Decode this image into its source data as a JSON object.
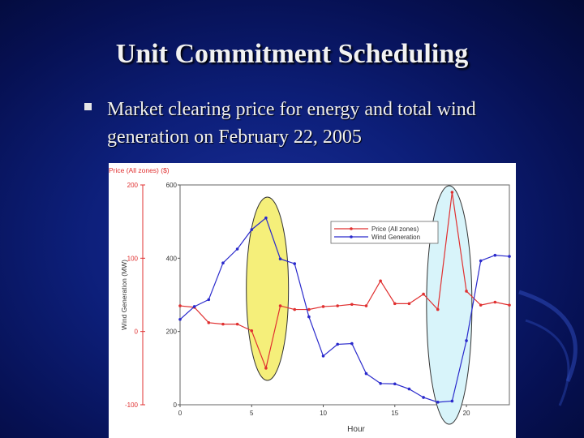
{
  "slide": {
    "title": "Unit Commitment Scheduling",
    "bullet": "Market clearing price for energy and total wind generation on February 22, 2005"
  },
  "colors": {
    "background": "#0d1f7a",
    "price_series": "#e03030",
    "wind_series": "#2a2acc",
    "highlight_yellow": "#f5ef7a",
    "highlight_cyan": "#d8f4fa"
  },
  "chart_data": {
    "type": "line",
    "ylabel_left": "Price (All zones) ($)",
    "ylabel_wind": "Wind Generation (MW)",
    "xlabel": "Hour",
    "xticks": [
      0,
      5,
      10,
      15,
      20
    ],
    "xlim": [
      0,
      23
    ],
    "price_axis": {
      "ticks": [
        200,
        100,
        0,
        -100
      ],
      "ylim": [
        -100,
        200
      ]
    },
    "wind_axis": {
      "ticks": [
        600,
        400,
        200,
        0
      ],
      "ylim": [
        0,
        600
      ]
    },
    "legend": {
      "position": "top-right",
      "entries": [
        "Price (All zones)",
        "Wind Generation"
      ]
    },
    "series": [
      {
        "name": "Price (All zones)",
        "axis": "price",
        "x": [
          0,
          1,
          2,
          3,
          4,
          5,
          6,
          7,
          8,
          9,
          10,
          11,
          12,
          13,
          14,
          15,
          16,
          17,
          18,
          19,
          20,
          21,
          22,
          23
        ],
        "values": [
          35,
          33,
          12,
          10,
          10,
          1,
          -50,
          35,
          30,
          30,
          34,
          35,
          37,
          35,
          69,
          38,
          38,
          51,
          30,
          190,
          55,
          36,
          40,
          36
        ]
      },
      {
        "name": "Wind Generation",
        "axis": "wind",
        "x": [
          0,
          1,
          2,
          3,
          4,
          5,
          6,
          7,
          8,
          9,
          10,
          11,
          12,
          13,
          14,
          15,
          16,
          17,
          18,
          19,
          20,
          21,
          22,
          23
        ],
        "values": [
          233,
          268,
          287,
          387,
          425,
          478,
          510,
          398,
          385,
          240,
          133,
          165,
          167,
          85,
          58,
          57,
          43,
          20,
          7,
          10,
          175,
          393,
          408,
          405
        ]
      }
    ],
    "highlights": [
      {
        "label": "low price window",
        "hour_center": 6.1
      },
      {
        "label": "price spike window",
        "hour_center": 18.8
      }
    ]
  }
}
